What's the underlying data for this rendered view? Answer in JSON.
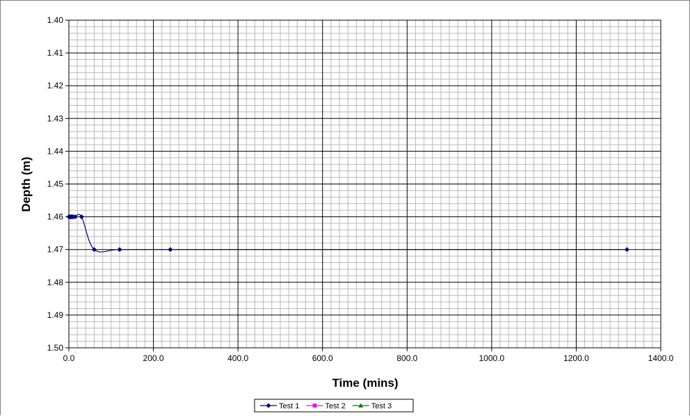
{
  "chart_data": {
    "type": "line",
    "title": "",
    "xlabel": "Time (mins)",
    "ylabel": "Depth (m)",
    "xlim": [
      0,
      1400
    ],
    "ylim": [
      1.4,
      1.5
    ],
    "y_inverted": true,
    "x_tick_labels": [
      "0.0",
      "200.0",
      "400.0",
      "600.0",
      "800.0",
      "1000.0",
      "1200.0",
      "1400.0"
    ],
    "y_tick_labels": [
      "1.40",
      "1.41",
      "1.42",
      "1.43",
      "1.44",
      "1.45",
      "1.46",
      "1.47",
      "1.48",
      "1.49",
      "1.50"
    ],
    "grid": true,
    "legend_position": "bottom",
    "series": [
      {
        "name": "Test 1",
        "color": "#000080",
        "marker": "diamond",
        "points": [
          {
            "x": 0,
            "y": 1.46
          },
          {
            "x": 2,
            "y": 1.46
          },
          {
            "x": 4,
            "y": 1.46
          },
          {
            "x": 6,
            "y": 1.46
          },
          {
            "x": 8,
            "y": 1.46
          },
          {
            "x": 10,
            "y": 1.46
          },
          {
            "x": 15,
            "y": 1.46
          },
          {
            "x": 30,
            "y": 1.46
          },
          {
            "x": 60,
            "y": 1.47
          },
          {
            "x": 120,
            "y": 1.47
          },
          {
            "x": 240,
            "y": 1.47
          },
          {
            "x": 1320,
            "y": 1.47
          }
        ]
      },
      {
        "name": "Test 2",
        "color": "#FF00FF",
        "marker": "square",
        "points": []
      },
      {
        "name": "Test 3",
        "color": "#008000",
        "marker": "triangle",
        "points": []
      }
    ]
  }
}
